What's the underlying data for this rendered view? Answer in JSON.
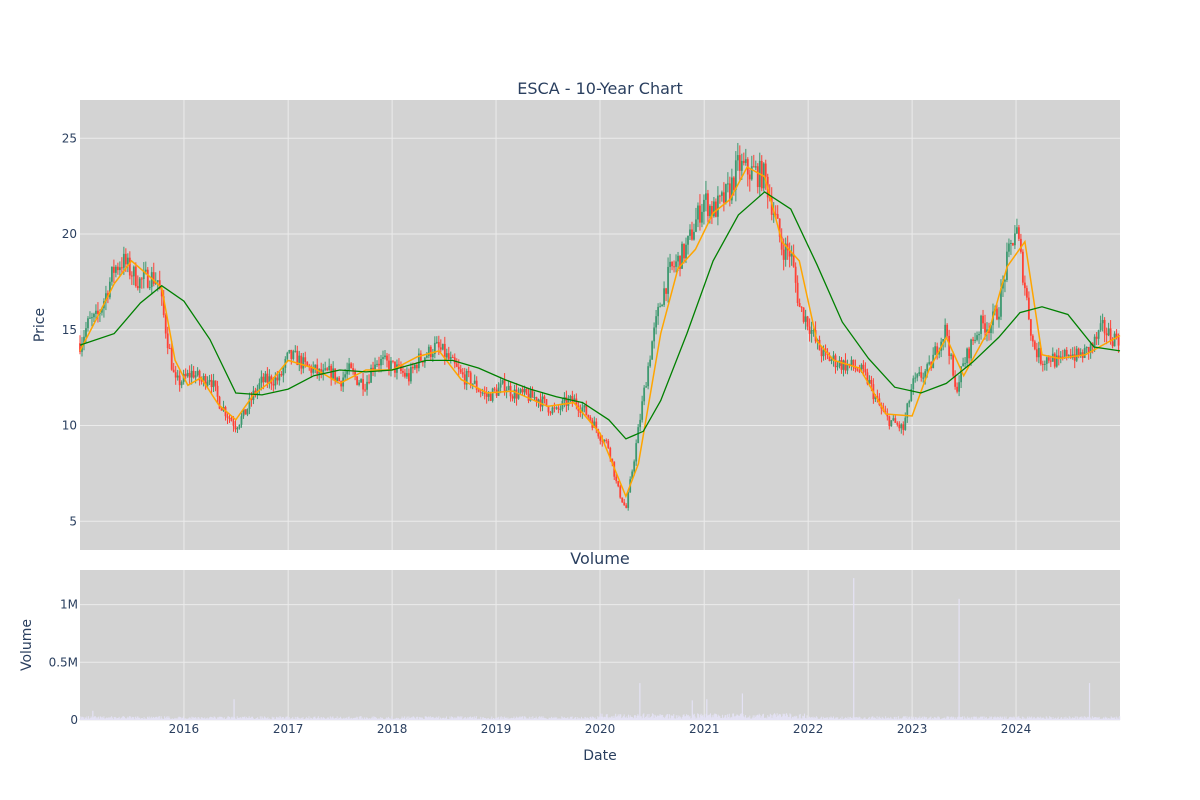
{
  "chart_data": [
    {
      "type": "candlestick",
      "title": "ESCA - 10-Year Chart",
      "xlabel": "",
      "ylabel": "Price",
      "x_range": [
        "2015-01-01",
        "2024-12-31"
      ],
      "ylim": [
        3.5,
        27
      ],
      "yticks": [
        5,
        10,
        15,
        20,
        25
      ],
      "grid": true,
      "legend": "none",
      "colors": {
        "background": "#d3d3d3",
        "grid": "#ebebeb",
        "up": "#3d9970",
        "down": "#ff4136",
        "ma_short": "#ffa500",
        "ma_long": "#008000"
      },
      "close_series": [
        [
          "2015-01-01",
          14.3
        ],
        [
          "2015-02-01",
          15.4
        ],
        [
          "2015-03-01",
          15.6
        ],
        [
          "2015-04-01",
          16.8
        ],
        [
          "2015-05-01",
          18.2
        ],
        [
          "2015-06-01",
          18.6
        ],
        [
          "2015-07-01",
          18.0
        ],
        [
          "2015-08-01",
          17.5
        ],
        [
          "2015-09-01",
          17.8
        ],
        [
          "2015-10-01",
          17.6
        ],
        [
          "2015-11-01",
          14.8
        ],
        [
          "2015-12-01",
          12.2
        ],
        [
          "2016-01-01",
          12.4
        ],
        [
          "2016-02-01",
          12.8
        ],
        [
          "2016-03-01",
          12.3
        ],
        [
          "2016-04-01",
          12.6
        ],
        [
          "2016-05-01",
          11.3
        ],
        [
          "2016-06-01",
          10.6
        ],
        [
          "2016-07-01",
          10.0
        ],
        [
          "2016-08-01",
          10.6
        ],
        [
          "2016-09-01",
          11.6
        ],
        [
          "2016-10-01",
          12.3
        ],
        [
          "2016-11-01",
          12.4
        ],
        [
          "2016-12-01",
          12.4
        ],
        [
          "2017-01-01",
          13.6
        ],
        [
          "2017-02-01",
          13.5
        ],
        [
          "2017-03-01",
          13.1
        ],
        [
          "2017-04-01",
          12.9
        ],
        [
          "2017-05-01",
          12.6
        ],
        [
          "2017-06-01",
          12.8
        ],
        [
          "2017-07-01",
          12.3
        ],
        [
          "2017-08-01",
          12.9
        ],
        [
          "2017-09-01",
          12.4
        ],
        [
          "2017-10-01",
          12.2
        ],
        [
          "2017-11-01",
          13.4
        ],
        [
          "2017-12-01",
          13.3
        ],
        [
          "2018-01-01",
          13.1
        ],
        [
          "2018-02-01",
          12.8
        ],
        [
          "2018-03-01",
          12.5
        ],
        [
          "2018-04-01",
          13.4
        ],
        [
          "2018-05-01",
          13.7
        ],
        [
          "2018-06-01",
          14.1
        ],
        [
          "2018-07-01",
          13.8
        ],
        [
          "2018-08-01",
          13.2
        ],
        [
          "2018-09-01",
          12.6
        ],
        [
          "2018-10-01",
          12.4
        ],
        [
          "2018-11-01",
          11.9
        ],
        [
          "2018-12-01",
          11.5
        ],
        [
          "2019-01-01",
          11.8
        ],
        [
          "2019-02-01",
          12.1
        ],
        [
          "2019-03-01",
          11.7
        ],
        [
          "2019-04-01",
          11.6
        ],
        [
          "2019-05-01",
          11.5
        ],
        [
          "2019-06-01",
          11.4
        ],
        [
          "2019-07-01",
          11.0
        ],
        [
          "2019-08-01",
          10.7
        ],
        [
          "2019-09-01",
          11.2
        ],
        [
          "2019-10-01",
          11.3
        ],
        [
          "2019-11-01",
          10.9
        ],
        [
          "2019-12-01",
          10.3
        ],
        [
          "2020-01-01",
          9.5
        ],
        [
          "2020-02-01",
          8.9
        ],
        [
          "2020-03-01",
          6.8
        ],
        [
          "2020-04-01",
          5.6
        ],
        [
          "2020-05-01",
          8.4
        ],
        [
          "2020-06-01",
          11.5
        ],
        [
          "2020-07-01",
          14.3
        ],
        [
          "2020-08-01",
          16.5
        ],
        [
          "2020-09-01",
          18.0
        ],
        [
          "2020-10-01",
          18.6
        ],
        [
          "2020-11-01",
          19.3
        ],
        [
          "2020-12-01",
          20.6
        ],
        [
          "2021-01-01",
          21.8
        ],
        [
          "2021-02-01",
          21.2
        ],
        [
          "2021-03-01",
          21.6
        ],
        [
          "2021-04-01",
          22.3
        ],
        [
          "2021-05-01",
          23.6
        ],
        [
          "2021-06-01",
          23.3
        ],
        [
          "2021-07-01",
          23.2
        ],
        [
          "2021-08-01",
          23.0
        ],
        [
          "2021-09-01",
          21.3
        ],
        [
          "2021-10-01",
          19.3
        ],
        [
          "2021-11-01",
          19.0
        ],
        [
          "2021-12-01",
          16.2
        ],
        [
          "2022-01-01",
          15.4
        ],
        [
          "2022-02-01",
          14.2
        ],
        [
          "2022-03-01",
          13.6
        ],
        [
          "2022-04-01",
          13.4
        ],
        [
          "2022-05-01",
          13.2
        ],
        [
          "2022-06-01",
          13.1
        ],
        [
          "2022-07-01",
          12.9
        ],
        [
          "2022-08-01",
          12.3
        ],
        [
          "2022-09-01",
          11.2
        ],
        [
          "2022-10-01",
          10.4
        ],
        [
          "2022-11-01",
          10.1
        ],
        [
          "2022-12-01",
          9.8
        ],
        [
          "2023-01-01",
          12.1
        ],
        [
          "2023-02-01",
          12.6
        ],
        [
          "2023-03-01",
          12.9
        ],
        [
          "2023-04-01",
          14.2
        ],
        [
          "2023-05-01",
          15.1
        ],
        [
          "2023-06-01",
          11.8
        ],
        [
          "2023-07-01",
          13.2
        ],
        [
          "2023-08-01",
          14.4
        ],
        [
          "2023-09-01",
          15.3
        ],
        [
          "2023-10-01",
          15.2
        ],
        [
          "2023-11-01",
          16.1
        ],
        [
          "2023-12-01",
          18.6
        ],
        [
          "2024-01-01",
          20.4
        ],
        [
          "2024-02-01",
          17.3
        ],
        [
          "2024-03-01",
          14.2
        ],
        [
          "2024-04-01",
          13.4
        ],
        [
          "2024-05-01",
          13.6
        ],
        [
          "2024-06-01",
          13.2
        ],
        [
          "2024-07-01",
          13.9
        ],
        [
          "2024-08-01",
          13.6
        ],
        [
          "2024-09-01",
          13.8
        ],
        [
          "2024-10-01",
          14.3
        ],
        [
          "2024-11-01",
          15.1
        ],
        [
          "2024-12-01",
          14.6
        ]
      ],
      "ma_short": [
        [
          "2015-01-01",
          13.9
        ],
        [
          "2015-03-01",
          15.6
        ],
        [
          "2015-05-01",
          17.4
        ],
        [
          "2015-07-01",
          18.6
        ],
        [
          "2015-09-01",
          17.8
        ],
        [
          "2015-10-15",
          17.2
        ],
        [
          "2015-12-01",
          13.4
        ],
        [
          "2016-01-15",
          12.1
        ],
        [
          "2016-03-01",
          12.5
        ],
        [
          "2016-05-01",
          11.1
        ],
        [
          "2016-07-01",
          10.3
        ],
        [
          "2016-09-01",
          11.6
        ],
        [
          "2016-11-01",
          12.3
        ],
        [
          "2017-01-01",
          13.4
        ],
        [
          "2017-04-01",
          13.0
        ],
        [
          "2017-07-01",
          12.2
        ],
        [
          "2017-10-01",
          12.9
        ],
        [
          "2018-01-01",
          12.9
        ],
        [
          "2018-04-01",
          13.6
        ],
        [
          "2018-06-15",
          13.9
        ],
        [
          "2018-09-01",
          12.4
        ],
        [
          "2018-12-01",
          11.7
        ],
        [
          "2019-03-01",
          11.8
        ],
        [
          "2019-07-01",
          11.0
        ],
        [
          "2019-10-01",
          11.2
        ],
        [
          "2020-01-01",
          9.6
        ],
        [
          "2020-04-01",
          6.3
        ],
        [
          "2020-05-15",
          8.0
        ],
        [
          "2020-08-01",
          14.8
        ],
        [
          "2020-10-01",
          18.2
        ],
        [
          "2020-12-01",
          19.2
        ],
        [
          "2021-02-01",
          21.1
        ],
        [
          "2021-04-01",
          21.8
        ],
        [
          "2021-06-01",
          23.5
        ],
        [
          "2021-08-01",
          23.0
        ],
        [
          "2021-10-01",
          19.6
        ],
        [
          "2021-12-01",
          18.6
        ],
        [
          "2022-02-01",
          14.4
        ],
        [
          "2022-04-01",
          13.4
        ],
        [
          "2022-07-01",
          13.0
        ],
        [
          "2022-10-01",
          10.6
        ],
        [
          "2023-01-01",
          10.5
        ],
        [
          "2023-03-01",
          12.9
        ],
        [
          "2023-05-01",
          14.6
        ],
        [
          "2023-07-01",
          12.6
        ],
        [
          "2023-10-01",
          15.1
        ],
        [
          "2023-12-01",
          18.3
        ],
        [
          "2024-02-01",
          19.6
        ],
        [
          "2024-04-01",
          13.7
        ],
        [
          "2024-06-01",
          13.5
        ],
        [
          "2024-09-01",
          13.7
        ],
        [
          "2024-12-31",
          14.7
        ]
      ],
      "ma_long": [
        [
          "2015-01-01",
          14.2
        ],
        [
          "2015-05-01",
          14.8
        ],
        [
          "2015-08-01",
          16.4
        ],
        [
          "2015-10-15",
          17.3
        ],
        [
          "2016-01-01",
          16.5
        ],
        [
          "2016-04-01",
          14.5
        ],
        [
          "2016-07-01",
          11.7
        ],
        [
          "2016-10-01",
          11.6
        ],
        [
          "2017-01-01",
          11.9
        ],
        [
          "2017-04-01",
          12.6
        ],
        [
          "2017-07-01",
          12.9
        ],
        [
          "2017-10-01",
          12.8
        ],
        [
          "2018-01-01",
          12.9
        ],
        [
          "2018-05-01",
          13.4
        ],
        [
          "2018-08-01",
          13.4
        ],
        [
          "2018-11-01",
          13.0
        ],
        [
          "2019-02-01",
          12.4
        ],
        [
          "2019-05-01",
          11.9
        ],
        [
          "2019-08-01",
          11.5
        ],
        [
          "2019-11-01",
          11.2
        ],
        [
          "2020-02-01",
          10.3
        ],
        [
          "2020-04-01",
          9.3
        ],
        [
          "2020-06-01",
          9.7
        ],
        [
          "2020-08-01",
          11.3
        ],
        [
          "2020-11-01",
          14.8
        ],
        [
          "2021-02-01",
          18.6
        ],
        [
          "2021-05-01",
          21.0
        ],
        [
          "2021-08-01",
          22.2
        ],
        [
          "2021-11-01",
          21.3
        ],
        [
          "2022-02-01",
          18.4
        ],
        [
          "2022-05-01",
          15.4
        ],
        [
          "2022-08-01",
          13.5
        ],
        [
          "2022-11-01",
          12.0
        ],
        [
          "2023-02-01",
          11.7
        ],
        [
          "2023-05-01",
          12.2
        ],
        [
          "2023-08-01",
          13.3
        ],
        [
          "2023-11-01",
          14.6
        ],
        [
          "2024-01-15",
          15.9
        ],
        [
          "2024-04-01",
          16.2
        ],
        [
          "2024-07-01",
          15.8
        ],
        [
          "2024-10-01",
          14.1
        ],
        [
          "2024-12-31",
          13.9
        ]
      ]
    },
    {
      "type": "bar",
      "title": "Volume",
      "xlabel": "Date",
      "ylabel": "Volume",
      "x_range": [
        "2015-01-01",
        "2024-12-31"
      ],
      "ylim": [
        0,
        1300000
      ],
      "yticks": [
        0,
        500000,
        1000000
      ],
      "ytick_labels": [
        "0",
        "0.5M",
        "1M"
      ],
      "xticks": [
        "2016-01-01",
        "2017-01-01",
        "2018-01-01",
        "2019-01-01",
        "2020-01-01",
        "2021-01-01",
        "2022-01-01",
        "2023-01-01",
        "2024-01-01"
      ],
      "xtick_labels": [
        "2016",
        "2017",
        "2018",
        "2019",
        "2020",
        "2021",
        "2022",
        "2023",
        "2024"
      ],
      "colors": {
        "bar": "#e4e2f4"
      },
      "baseline_volume": 22000,
      "notable_volumes": [
        [
          "2015-02-15",
          80000
        ],
        [
          "2016-06-25",
          180000
        ],
        [
          "2020-05-20",
          320000
        ],
        [
          "2020-11-20",
          170000
        ],
        [
          "2021-01-10",
          180000
        ],
        [
          "2021-05-15",
          230000
        ],
        [
          "2022-06-10",
          1230000
        ],
        [
          "2023-06-15",
          1050000
        ],
        [
          "2024-09-15",
          320000
        ]
      ]
    }
  ]
}
